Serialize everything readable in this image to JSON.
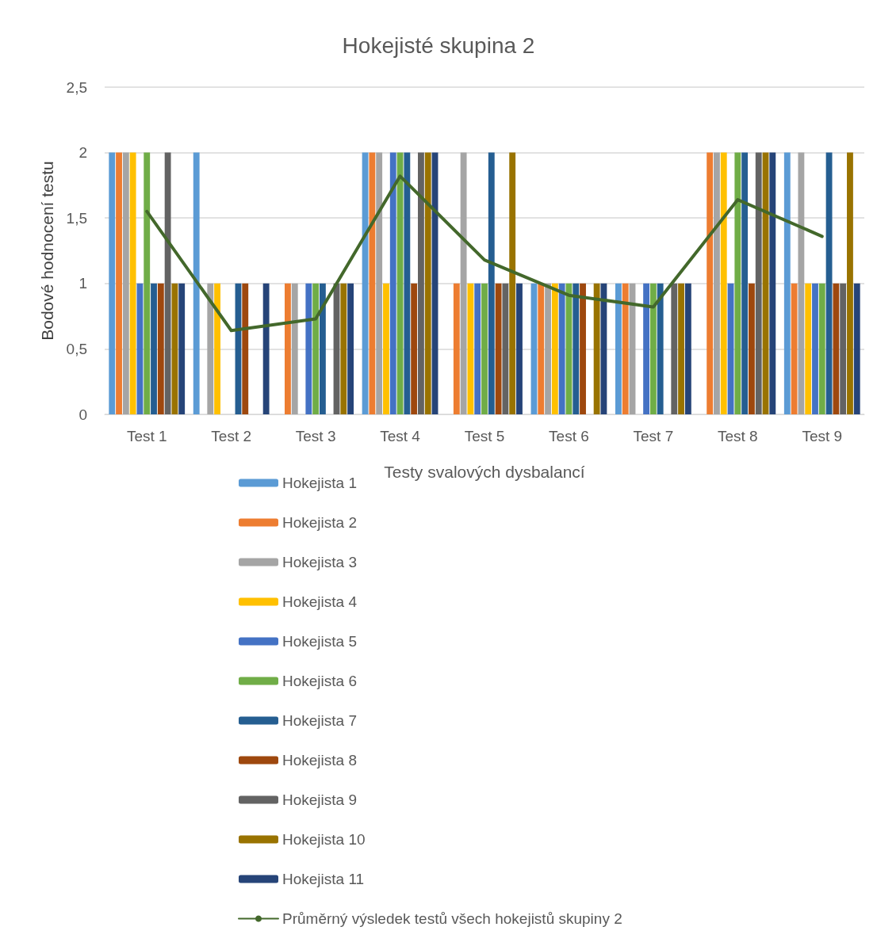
{
  "chart_data": {
    "type": "bar",
    "title": "Hokejisté skupina 2",
    "xlabel": "Testy svalových dysbalancí",
    "ylabel": "Bodové hodnocení testu",
    "categories": [
      "Test 1",
      "Test 2",
      "Test 3",
      "Test 4",
      "Test 5",
      "Test 6",
      "Test 7",
      "Test 8",
      "Test 9"
    ],
    "series": [
      {
        "name": "Hokejista 1",
        "color": "#5b9bd5",
        "values": [
          2,
          2,
          0,
          2,
          0,
          1,
          1,
          0,
          2
        ]
      },
      {
        "name": "Hokejista 2",
        "color": "#ed7d31",
        "values": [
          2,
          0,
          1,
          2,
          1,
          1,
          1,
          2,
          1
        ]
      },
      {
        "name": "Hokejista 3",
        "color": "#a5a5a5",
        "values": [
          2,
          1,
          1,
          2,
          2,
          1,
          1,
          2,
          2
        ]
      },
      {
        "name": "Hokejista 4",
        "color": "#ffc000",
        "values": [
          2,
          1,
          0,
          1,
          1,
          1,
          0,
          2,
          1
        ]
      },
      {
        "name": "Hokejista 5",
        "color": "#4472c4",
        "values": [
          1,
          0,
          1,
          2,
          1,
          1,
          1,
          1,
          1
        ]
      },
      {
        "name": "Hokejista 6",
        "color": "#70ad47",
        "values": [
          2,
          0,
          1,
          2,
          1,
          1,
          1,
          2,
          1
        ]
      },
      {
        "name": "Hokejista 7",
        "color": "#255e91",
        "values": [
          1,
          1,
          1,
          2,
          2,
          1,
          1,
          2,
          2
        ]
      },
      {
        "name": "Hokejista 8",
        "color": "#9e480e",
        "values": [
          1,
          1,
          0,
          1,
          1,
          1,
          0,
          1,
          1
        ]
      },
      {
        "name": "Hokejista 9",
        "color": "#636363",
        "values": [
          2,
          0,
          1,
          2,
          1,
          0,
          1,
          2,
          1
        ]
      },
      {
        "name": "Hokejista 10",
        "color": "#997300",
        "values": [
          1,
          0,
          1,
          2,
          2,
          1,
          1,
          2,
          2
        ]
      },
      {
        "name": "Hokejista 11",
        "color": "#264478",
        "values": [
          1,
          1,
          1,
          2,
          1,
          1,
          1,
          2,
          1
        ]
      },
      {
        "name": "Průměrný výsledek testů všech hokejistů skupiny 2",
        "type": "line",
        "color": "#43682b",
        "values": [
          1.55,
          0.64,
          0.73,
          1.82,
          1.18,
          0.91,
          0.82,
          1.64,
          1.36
        ]
      }
    ],
    "ylim": [
      0,
      2.5
    ],
    "yticks": [
      0,
      {
        "value": 0.5,
        "label": "0,5"
      },
      1,
      {
        "value": 1.5,
        "label": "1,5"
      },
      2,
      {
        "value": 2.5,
        "label": "2,5"
      }
    ],
    "grid": "y",
    "legend": "bottom",
    "marker": "none",
    "line_style": "solid"
  }
}
